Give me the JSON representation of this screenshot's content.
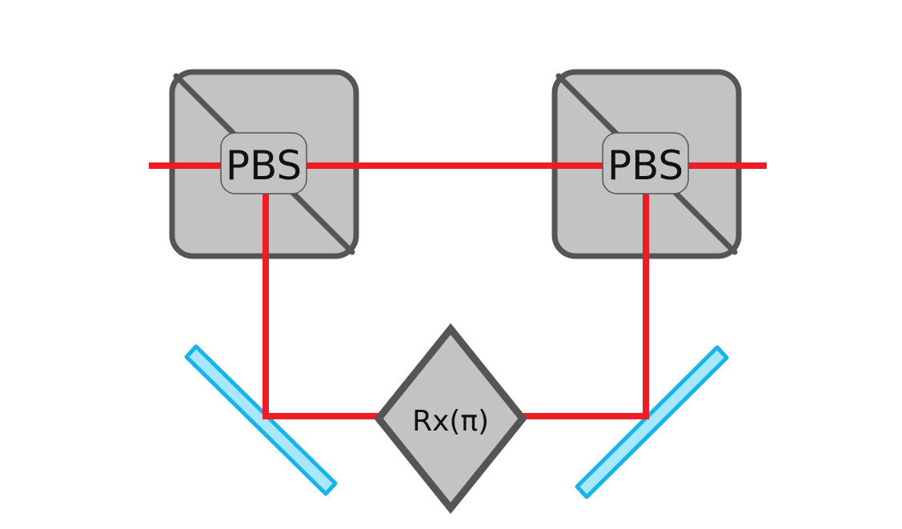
{
  "diagram": {
    "components": {
      "pbs_left": {
        "label": "PBS"
      },
      "pbs_right": {
        "label": "PBS"
      },
      "rotator": {
        "label": "Rx(π)"
      }
    },
    "colors": {
      "beam": "#ee1c25",
      "cube_fill": "#c3c3c3",
      "cube_stroke": "#555555",
      "mirror_fill": "#a8e8ff",
      "mirror_stroke": "#16b4ec",
      "background": "#ffffff"
    }
  }
}
